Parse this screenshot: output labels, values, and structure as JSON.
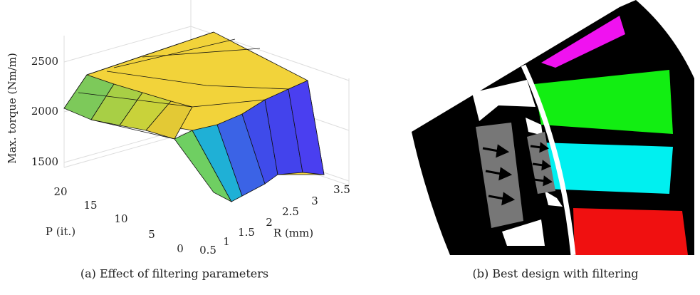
{
  "figure": {
    "panels": [
      {
        "caption": "(a) Effect of filtering parameters",
        "z_label": "Max. torque (Nm/m)",
        "z_ticks": [
          "2500",
          "2000",
          "1500"
        ],
        "p_label": "P (it.)",
        "p_ticks": [
          "20",
          "15",
          "10",
          "5",
          "0"
        ],
        "r_label": "R (mm)",
        "r_ticks": [
          "0.5",
          "1",
          "1.5",
          "2",
          "2.5",
          "3",
          "3.5"
        ]
      },
      {
        "caption": "(b) Best design with filtering"
      }
    ]
  }
}
